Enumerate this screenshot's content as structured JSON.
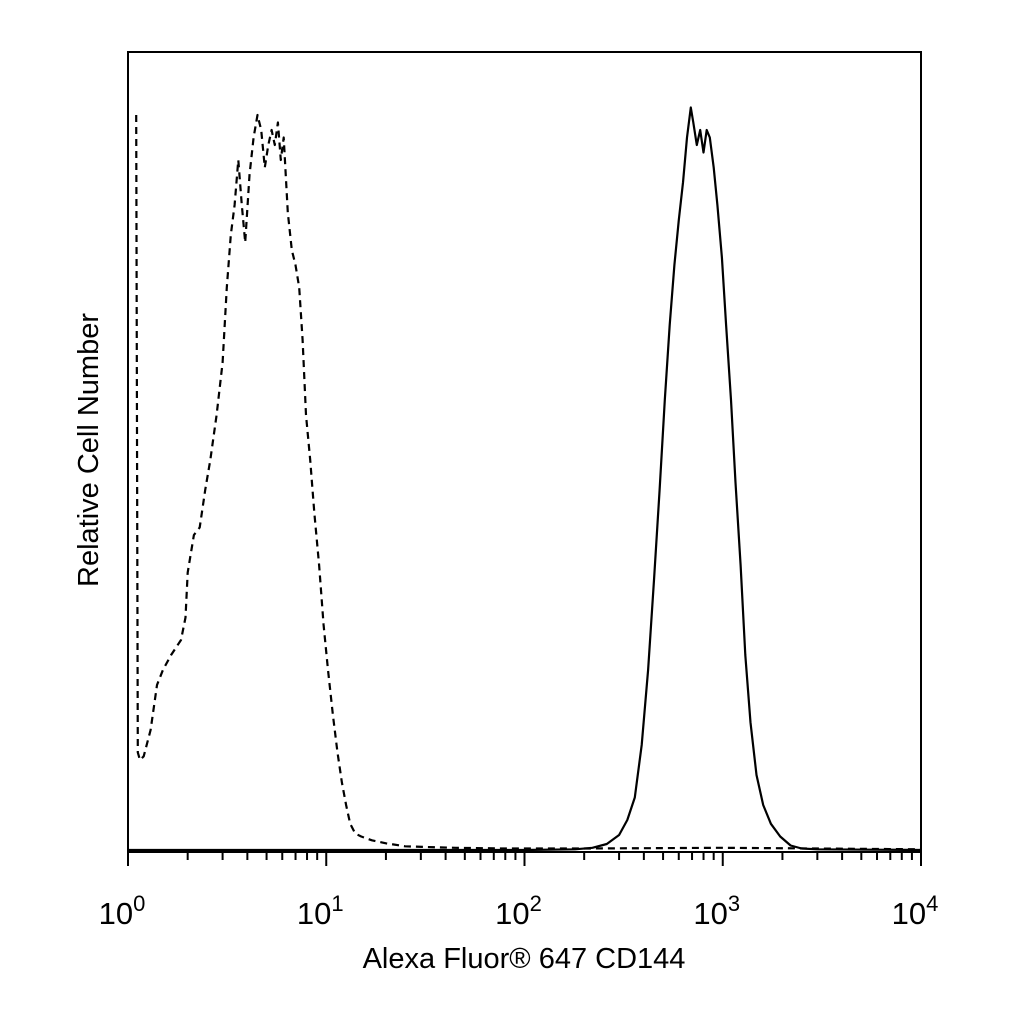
{
  "chart_data": {
    "type": "line",
    "title": "",
    "xlabel": "Alexa Fluor® 647 CD144",
    "ylabel": "Relative Cell Number",
    "x_scale": "log",
    "xlim": [
      1,
      10000
    ],
    "ylim": [
      0,
      100
    ],
    "x_ticks": [
      {
        "value": 1,
        "base": "10",
        "exp": "0"
      },
      {
        "value": 10,
        "base": "10",
        "exp": "1"
      },
      {
        "value": 100,
        "base": "10",
        "exp": "2"
      },
      {
        "value": 1000,
        "base": "10",
        "exp": "3"
      },
      {
        "value": 10000,
        "base": "10",
        "exp": "4"
      }
    ],
    "grid": false,
    "legend": "none",
    "series": [
      {
        "style": "dashed",
        "color": "#000000",
        "x": [
          1.1,
          1.12,
          1.15,
          1.2,
          1.3,
          1.4,
          1.5,
          1.65,
          1.85,
          1.95,
          2.0,
          2.15,
          2.3,
          2.45,
          2.6,
          2.8,
          3.0,
          3.15,
          3.3,
          3.45,
          3.6,
          3.75,
          3.9,
          4.1,
          4.3,
          4.5,
          4.7,
          4.9,
          5.1,
          5.3,
          5.5,
          5.7,
          5.9,
          6.1,
          6.4,
          6.7,
          7.0,
          7.3,
          7.6,
          7.9,
          8.3,
          8.7,
          9.2,
          9.7,
          10.2,
          10.8,
          11.4,
          12.0,
          12.6,
          13.2,
          14.0,
          15.0,
          17.0,
          20.0,
          25.0,
          32.0,
          45.0,
          80.0,
          200.0,
          1000.0,
          3000.0,
          10000.0
        ],
        "y": [
          98.0,
          13.0,
          12.0,
          12.5,
          16.0,
          22.0,
          24.0,
          26.0,
          28.0,
          31.0,
          37.0,
          42.0,
          43.0,
          48.0,
          52.0,
          58.0,
          65.0,
          75.0,
          82.0,
          86.0,
          92.0,
          86.0,
          81.0,
          90.0,
          95.0,
          98.0,
          96.0,
          91.0,
          94.0,
          96.0,
          94.0,
          97.0,
          92.0,
          95.0,
          85.0,
          80.0,
          78.0,
          75.0,
          68.0,
          58.0,
          52.0,
          45.0,
          38.0,
          30.0,
          24.0,
          18.0,
          13.0,
          9.0,
          6.0,
          3.5,
          2.2,
          1.8,
          1.3,
          0.9,
          0.5,
          0.4,
          0.3,
          0.2,
          0.2,
          0.3,
          0.2,
          0.1
        ]
      },
      {
        "style": "solid",
        "color": "#000000",
        "x": [
          1.0,
          100.0,
          180.0,
          220.0,
          260.0,
          300.0,
          330.0,
          360.0,
          390.0,
          420.0,
          450.0,
          480.0,
          510.0,
          540.0,
          570.0,
          600.0,
          630.0,
          660.0,
          690.0,
          710.0,
          740.0,
          770.0,
          800.0,
          830.0,
          860.0,
          900.0,
          940.0,
          990.0,
          1040.0,
          1100.0,
          1160.0,
          1230.0,
          1300.0,
          1380.0,
          1480.0,
          1600.0,
          1750.0,
          1950.0,
          2200.0,
          2500.0,
          3000.0,
          10000.0
        ],
        "y": [
          0.0,
          0.0,
          0.1,
          0.3,
          0.8,
          2.0,
          4.0,
          7.0,
          14.0,
          24.0,
          36.0,
          48.0,
          60.0,
          70.0,
          78.0,
          84.0,
          89.0,
          95.0,
          99.0,
          97.0,
          94.0,
          96.0,
          93.0,
          96.0,
          95.0,
          91.0,
          86.0,
          79.0,
          70.0,
          60.0,
          49.0,
          38.0,
          26.0,
          17.0,
          10.0,
          6.0,
          3.5,
          1.8,
          0.6,
          0.2,
          0.1,
          0.0
        ]
      }
    ]
  }
}
